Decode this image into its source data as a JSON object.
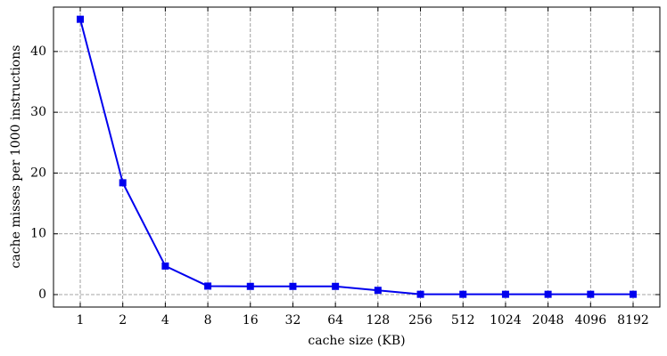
{
  "chart_data": {
    "type": "line",
    "x_label": "cache size (KB)",
    "y_label": "cache misses per 1000 instructions",
    "categories": [
      "1",
      "2",
      "4",
      "8",
      "16",
      "32",
      "64",
      "128",
      "256",
      "512",
      "1024",
      "2048",
      "4096",
      "8192"
    ],
    "series": [
      {
        "color": "#0000ee",
        "values": [
          45.3,
          18.4,
          4.7,
          1.4,
          1.35,
          1.35,
          1.35,
          0.7,
          0.05,
          0.05,
          0.05,
          0.05,
          0.05,
          0.05
        ]
      }
    ],
    "ylim": [
      -2.05,
      47.3
    ],
    "yticks": [
      0,
      10,
      20,
      30,
      40
    ],
    "grid": true
  }
}
